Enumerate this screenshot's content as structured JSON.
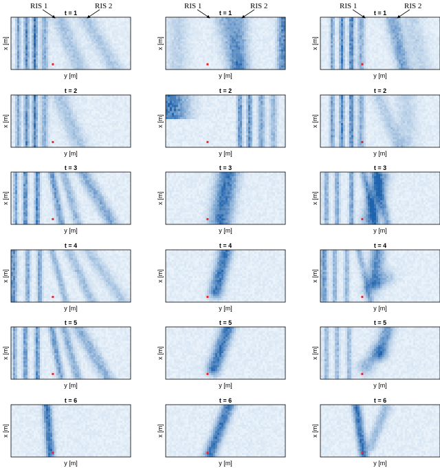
{
  "chart_data": {
    "type": "heatmap",
    "layout": {
      "rows": 6,
      "cols": 3
    },
    "colormap": {
      "low": "#f2f8fd",
      "high": "#1f63ad"
    },
    "marker_color": "#e8262b",
    "xlabel": "y [m]",
    "ylabel": "x [m]",
    "annotations": {
      "ris1": "RIS 1",
      "ris2": "RIS 2"
    },
    "panels": [
      {
        "title": "t = 1",
        "col": 0,
        "bands": [
          {
            "x": 0.06,
            "w": 0.012,
            "i": 0.55
          },
          {
            "x": 0.13,
            "w": 0.014,
            "i": 0.75
          },
          {
            "x": 0.2,
            "w": 0.014,
            "i": 0.85
          },
          {
            "x": 0.28,
            "w": 0.02,
            "i": 0.45
          },
          {
            "x": 0.4,
            "w": 0.05,
            "i": 0.3,
            "s": 0.18
          },
          {
            "x": 0.62,
            "w": 0.05,
            "i": 0.28,
            "s": 0.25
          }
        ],
        "marker": [
          0.35,
          0.9
        ]
      },
      {
        "title": "t = 1",
        "col": 1,
        "bands": [
          {
            "x": 0.1,
            "w": 0.06,
            "i": 0.2
          },
          {
            "x": 0.5,
            "w": 0.06,
            "i": 0.45,
            "s": 0.1
          },
          {
            "x": 0.62,
            "w": 0.05,
            "i": 0.4
          },
          {
            "x": 0.98,
            "w": 0.03,
            "i": 0.75
          }
        ],
        "marker": [
          0.35,
          0.9
        ]
      },
      {
        "title": "t = 1",
        "col": 2,
        "bands": [
          {
            "x": 0.1,
            "w": 0.012,
            "i": 0.55
          },
          {
            "x": 0.18,
            "w": 0.014,
            "i": 0.75
          },
          {
            "x": 0.26,
            "w": 0.014,
            "i": 0.85
          },
          {
            "x": 0.34,
            "w": 0.02,
            "i": 0.45
          },
          {
            "x": 0.6,
            "w": 0.04,
            "i": 0.55,
            "s": 0.1
          },
          {
            "x": 0.75,
            "w": 0.06,
            "i": 0.2,
            "s": 0.1
          }
        ],
        "marker": [
          0.35,
          0.9
        ]
      },
      {
        "title": "t = 2",
        "col": 0,
        "bands": [
          {
            "x": 0.06,
            "w": 0.014,
            "i": 0.5
          },
          {
            "x": 0.13,
            "w": 0.014,
            "i": 0.7
          },
          {
            "x": 0.2,
            "w": 0.014,
            "i": 0.8
          },
          {
            "x": 0.28,
            "w": 0.02,
            "i": 0.45
          },
          {
            "x": 0.4,
            "w": 0.05,
            "i": 0.3,
            "s": 0.18
          }
        ],
        "marker": [
          0.35,
          0.9
        ]
      },
      {
        "title": "t = 2",
        "col": 1,
        "bands": [
          {
            "x": 0.04,
            "w": 0.1,
            "i": 0.85,
            "top": 0.45
          },
          {
            "x": 0.62,
            "w": 0.015,
            "i": 0.7
          },
          {
            "x": 0.7,
            "w": 0.015,
            "i": 0.7
          },
          {
            "x": 0.8,
            "w": 0.02,
            "i": 0.5
          },
          {
            "x": 0.9,
            "w": 0.02,
            "i": 0.4
          }
        ],
        "marker": [
          0.35,
          0.9
        ]
      },
      {
        "title": "t = 2",
        "col": 2,
        "bands": [
          {
            "x": 0.1,
            "w": 0.014,
            "i": 0.6
          },
          {
            "x": 0.18,
            "w": 0.014,
            "i": 0.75
          },
          {
            "x": 0.26,
            "w": 0.014,
            "i": 0.8
          },
          {
            "x": 0.34,
            "w": 0.02,
            "i": 0.45
          },
          {
            "x": 0.48,
            "w": 0.04,
            "i": 0.25,
            "s": 0.18
          },
          {
            "x": 0.72,
            "w": 0.06,
            "i": 0.2
          }
        ],
        "marker": [
          0.35,
          0.9
        ]
      },
      {
        "title": "t = 3",
        "col": 0,
        "bands": [
          {
            "x": 0.04,
            "w": 0.012,
            "i": 0.6
          },
          {
            "x": 0.12,
            "w": 0.014,
            "i": 0.75
          },
          {
            "x": 0.22,
            "w": 0.014,
            "i": 0.8
          },
          {
            "x": 0.34,
            "w": 0.02,
            "i": 0.65,
            "s": 0.08
          },
          {
            "x": 0.44,
            "w": 0.025,
            "i": 0.4,
            "s": 0.12
          },
          {
            "x": 0.6,
            "w": 0.04,
            "i": 0.5,
            "s": 0.25
          }
        ],
        "marker": [
          0.35,
          0.9
        ]
      },
      {
        "title": "t = 3",
        "col": 1,
        "blobs": [
          {
            "x0": 0.46,
            "y0": 0.95,
            "x1": 0.52,
            "y1": 0.02,
            "w": 0.06,
            "i": 0.85
          }
        ],
        "marker": [
          0.35,
          0.9
        ]
      },
      {
        "title": "t = 3",
        "col": 2,
        "bands": [
          {
            "x": 0.05,
            "w": 0.014,
            "i": 0.5
          },
          {
            "x": 0.14,
            "w": 0.014,
            "i": 0.55
          },
          {
            "x": 0.26,
            "w": 0.014,
            "i": 0.6
          },
          {
            "x": 0.36,
            "w": 0.02,
            "i": 0.55,
            "s": 0.1
          },
          {
            "x": 0.46,
            "w": 0.025,
            "i": 0.5,
            "s": 0.1
          }
        ],
        "blobs": [
          {
            "x0": 0.42,
            "y0": 0.9,
            "x1": 0.5,
            "y1": 0.1,
            "w": 0.05,
            "i": 0.7
          }
        ],
        "marker": [
          0.35,
          0.9
        ]
      },
      {
        "title": "t = 4",
        "col": 0,
        "bands": [
          {
            "x": 0.02,
            "w": 0.02,
            "i": 0.7
          },
          {
            "x": 0.14,
            "w": 0.014,
            "i": 0.55
          },
          {
            "x": 0.24,
            "w": 0.014,
            "i": 0.55
          },
          {
            "x": 0.34,
            "w": 0.02,
            "i": 0.4,
            "s": 0.12
          },
          {
            "x": 0.48,
            "w": 0.03,
            "i": 0.35,
            "s": 0.2
          },
          {
            "x": 0.64,
            "w": 0.04,
            "i": 0.28,
            "s": 0.3
          }
        ],
        "marker": [
          0.35,
          0.9
        ]
      },
      {
        "title": "t = 4",
        "col": 1,
        "blobs": [
          {
            "x0": 0.42,
            "y0": 0.8,
            "x1": 0.5,
            "y1": 0.02,
            "w": 0.04,
            "i": 0.85
          }
        ],
        "marker": [
          0.35,
          0.9
        ]
      },
      {
        "title": "t = 4",
        "col": 2,
        "bands": [
          {
            "x": 0.03,
            "w": 0.02,
            "i": 0.6
          },
          {
            "x": 0.12,
            "w": 0.014,
            "i": 0.45
          },
          {
            "x": 0.22,
            "w": 0.014,
            "i": 0.45
          },
          {
            "x": 0.32,
            "w": 0.02,
            "i": 0.4,
            "s": 0.1
          }
        ],
        "blobs": [
          {
            "x0": 0.45,
            "y0": 0.6,
            "x1": 0.48,
            "y1": 0.05,
            "w": 0.04,
            "i": 0.7
          },
          {
            "x0": 0.42,
            "y0": 0.75,
            "x1": 0.55,
            "y1": 0.55,
            "w": 0.05,
            "i": 0.35
          }
        ],
        "marker": [
          0.35,
          0.9
        ]
      },
      {
        "title": "t = 5",
        "col": 0,
        "bands": [
          {
            "x": 0.03,
            "w": 0.012,
            "i": 0.55
          },
          {
            "x": 0.12,
            "w": 0.014,
            "i": 0.65
          },
          {
            "x": 0.22,
            "w": 0.014,
            "i": 0.7
          },
          {
            "x": 0.34,
            "w": 0.02,
            "i": 0.6,
            "s": 0.08
          },
          {
            "x": 0.44,
            "w": 0.025,
            "i": 0.45,
            "s": 0.12
          },
          {
            "x": 0.56,
            "w": 0.04,
            "i": 0.45,
            "s": 0.25
          }
        ],
        "marker": [
          0.35,
          0.9
        ]
      },
      {
        "title": "t = 5",
        "col": 1,
        "blobs": [
          {
            "x0": 0.4,
            "y0": 0.8,
            "x1": 0.52,
            "y1": 0.02,
            "w": 0.04,
            "i": 0.85
          }
        ],
        "marker": [
          0.35,
          0.9
        ]
      },
      {
        "title": "t = 5",
        "col": 2,
        "bands": [
          {
            "x": 0.05,
            "w": 0.014,
            "i": 0.4
          },
          {
            "x": 0.14,
            "w": 0.014,
            "i": 0.4
          },
          {
            "x": 0.24,
            "w": 0.014,
            "i": 0.4
          }
        ],
        "blobs": [
          {
            "x0": 0.5,
            "y0": 0.5,
            "x1": 0.56,
            "y1": 0.05,
            "w": 0.04,
            "i": 0.6
          },
          {
            "x0": 0.38,
            "y0": 0.75,
            "x1": 0.48,
            "y1": 0.5,
            "w": 0.05,
            "i": 0.4
          }
        ],
        "marker": [
          0.35,
          0.9
        ]
      },
      {
        "title": "t = 6",
        "col": 0,
        "blobs": [
          {
            "x0": 0.33,
            "y0": 0.95,
            "x1": 0.3,
            "y1": 0.0,
            "w": 0.025,
            "i": 0.85
          }
        ],
        "marker": [
          0.35,
          0.92
        ]
      },
      {
        "title": "t = 6",
        "col": 1,
        "blobs": [
          {
            "x0": 0.37,
            "y0": 0.95,
            "x1": 0.53,
            "y1": 0.0,
            "w": 0.035,
            "i": 0.85
          }
        ],
        "marker": [
          0.35,
          0.92
        ]
      },
      {
        "title": "t = 6",
        "col": 2,
        "blobs": [
          {
            "x0": 0.36,
            "y0": 0.95,
            "x1": 0.3,
            "y1": 0.0,
            "w": 0.025,
            "i": 0.85
          },
          {
            "x0": 0.42,
            "y0": 0.8,
            "x1": 0.55,
            "y1": 0.05,
            "w": 0.03,
            "i": 0.35
          }
        ],
        "marker": [
          0.35,
          0.92
        ]
      }
    ]
  }
}
